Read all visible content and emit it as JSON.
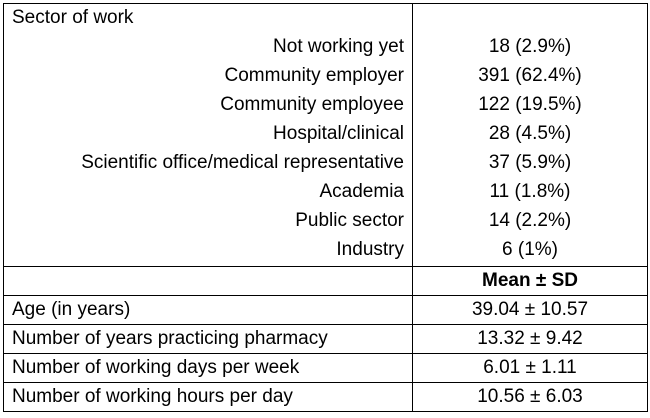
{
  "sector": {
    "title": "Sector of work",
    "items": [
      {
        "label": "Not working yet",
        "value": "18 (2.9%)"
      },
      {
        "label": "Community employer",
        "value": "391 (62.4%)"
      },
      {
        "label": "Community employee",
        "value": "122 (19.5%)"
      },
      {
        "label": "Hospital/clinical",
        "value": "28 (4.5%)"
      },
      {
        "label": "Scientific office/medical representative",
        "value": "37 (5.9%)"
      },
      {
        "label": "Academia",
        "value": "11 (1.8%)"
      },
      {
        "label": "Public sector",
        "value": "14 (2.2%)"
      },
      {
        "label": "Industry",
        "value": "6 (1%)"
      }
    ]
  },
  "stats_header": "Mean ± SD",
  "stats": [
    {
      "label": "Age (in years)",
      "value": "39.04 ± 10.57"
    },
    {
      "label": "Number of years practicing pharmacy",
      "value": "13.32 ± 9.42"
    },
    {
      "label": "Number of working days per week",
      "value": "6.01 ± 1.11"
    },
    {
      "label": "Number of working hours per day",
      "value": "10.56 ± 6.03"
    }
  ]
}
